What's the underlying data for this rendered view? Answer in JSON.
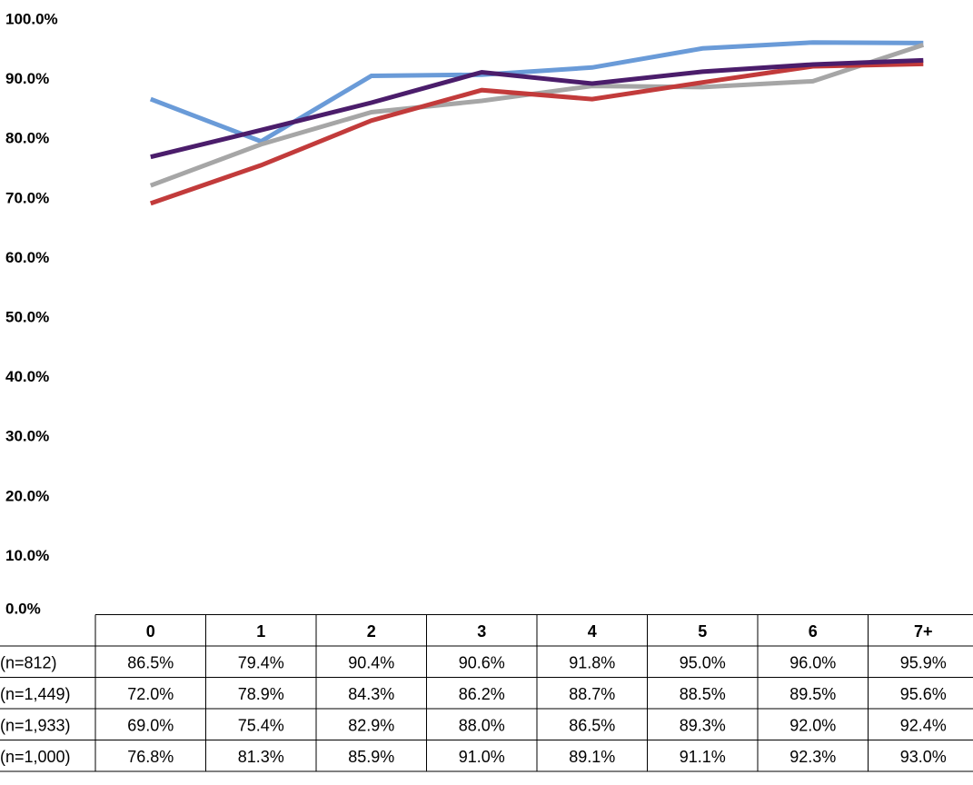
{
  "chart_data": {
    "type": "line",
    "categories": [
      "0",
      "1",
      "2",
      "3",
      "4",
      "5",
      "6",
      "7+"
    ],
    "ylim": [
      0,
      100
    ],
    "y_tick_labels": [
      "0.0%",
      "10.0%",
      "20.0%",
      "30.0%",
      "40.0%",
      "50.0%",
      "60.0%",
      "70.0%",
      "80.0%",
      "90.0%",
      "100.0%"
    ],
    "grid": false,
    "legend": "data-table-below",
    "series": [
      {
        "row_label": "(n=812)",
        "color": "#6a9bd8",
        "values": [
          86.5,
          79.4,
          90.4,
          90.6,
          91.8,
          95.0,
          96.0,
          95.9
        ],
        "labels": [
          "86.5%",
          "79.4%",
          "90.4%",
          "90.6%",
          "91.8%",
          "95.0%",
          "96.0%",
          "95.9%"
        ]
      },
      {
        "row_label": "(n=1,449)",
        "color": "#a6a6a6",
        "values": [
          72.0,
          78.9,
          84.3,
          86.2,
          88.7,
          88.5,
          89.5,
          95.6
        ],
        "labels": [
          "72.0%",
          "78.9%",
          "84.3%",
          "86.2%",
          "88.7%",
          "88.5%",
          "89.5%",
          "95.6%"
        ]
      },
      {
        "row_label": "(n=1,933)",
        "color": "#c23b3b",
        "values": [
          69.0,
          75.4,
          82.9,
          88.0,
          86.5,
          89.3,
          92.0,
          92.4
        ],
        "labels": [
          "69.0%",
          "75.4%",
          "82.9%",
          "88.0%",
          "86.5%",
          "89.3%",
          "92.0%",
          "92.4%"
        ]
      },
      {
        "row_label": "(n=1,000)",
        "color": "#4b1d6b",
        "values": [
          76.8,
          81.3,
          85.9,
          91.0,
          89.1,
          91.1,
          92.3,
          93.0
        ],
        "labels": [
          "76.8%",
          "81.3%",
          "85.9%",
          "91.0%",
          "89.1%",
          "91.1%",
          "92.3%",
          "93.0%"
        ]
      }
    ]
  }
}
